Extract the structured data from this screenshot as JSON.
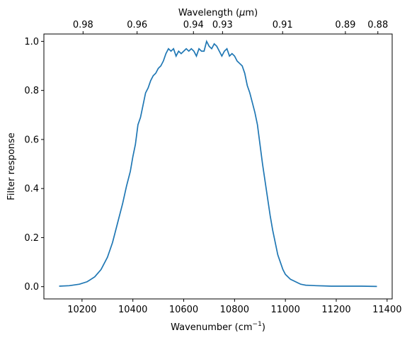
{
  "chart_data": {
    "type": "line",
    "xlabel": "Wavenumber (cm",
    "xlabel_sup": "−1",
    "xlabel_close": ")",
    "ylabel": "Filter response",
    "top_xlabel_prefix": "Wavelength (",
    "top_xlabel_mu": "μ",
    "top_xlabel_suffix": "m)",
    "xlim": [
      10050,
      11420
    ],
    "ylim": [
      -0.05,
      1.03
    ],
    "x_ticks": [
      {
        "value": 10200,
        "label": "10200"
      },
      {
        "value": 10400,
        "label": "10400"
      },
      {
        "value": 10600,
        "label": "10600"
      },
      {
        "value": 10800,
        "label": "10800"
      },
      {
        "value": 11000,
        "label": "11000"
      },
      {
        "value": 11200,
        "label": "11200"
      },
      {
        "value": 11400,
        "label": "11400"
      }
    ],
    "y_ticks": [
      {
        "value": 0.0,
        "label": "0.0"
      },
      {
        "value": 0.2,
        "label": "0.2"
      },
      {
        "value": 0.4,
        "label": "0.4"
      },
      {
        "value": 0.6,
        "label": "0.6"
      },
      {
        "value": 0.8,
        "label": "0.8"
      },
      {
        "value": 1.0,
        "label": "1.0"
      }
    ],
    "top_ticks": [
      {
        "wavelength": 0.98,
        "label": "0.98"
      },
      {
        "wavelength": 0.96,
        "label": "0.96"
      },
      {
        "wavelength": 0.94,
        "label": "0.94"
      },
      {
        "wavelength": 0.93,
        "label": "0.93"
      },
      {
        "wavelength": 0.91,
        "label": "0.91"
      },
      {
        "wavelength": 0.89,
        "label": "0.89"
      },
      {
        "wavelength": 0.88,
        "label": "0.88"
      }
    ],
    "series": [
      {
        "color": "#1f77b4",
        "x": [
          10110,
          10150,
          10190,
          10220,
          10250,
          10275,
          10300,
          10320,
          10340,
          10360,
          10375,
          10390,
          10400,
          10410,
          10420,
          10430,
          10440,
          10450,
          10460,
          10470,
          10480,
          10490,
          10500,
          10510,
          10520,
          10530,
          10540,
          10550,
          10560,
          10570,
          10580,
          10590,
          10600,
          10610,
          10620,
          10630,
          10640,
          10650,
          10660,
          10670,
          10680,
          10690,
          10700,
          10710,
          10720,
          10730,
          10740,
          10750,
          10760,
          10770,
          10780,
          10790,
          10800,
          10810,
          10820,
          10830,
          10840,
          10850,
          10860,
          10870,
          10880,
          10890,
          10900,
          10910,
          10920,
          10930,
          10940,
          10950,
          10960,
          10970,
          10980,
          10990,
          11000,
          11010,
          11020,
          11030,
          11040,
          11050,
          11060,
          11070,
          11080,
          11100,
          11120,
          11150,
          11180,
          11220,
          11260,
          11300,
          11360
        ],
        "y": [
          0.002,
          0.004,
          0.01,
          0.02,
          0.04,
          0.07,
          0.12,
          0.18,
          0.26,
          0.34,
          0.41,
          0.47,
          0.53,
          0.58,
          0.66,
          0.69,
          0.74,
          0.79,
          0.81,
          0.84,
          0.86,
          0.87,
          0.89,
          0.9,
          0.92,
          0.95,
          0.97,
          0.96,
          0.97,
          0.94,
          0.96,
          0.95,
          0.96,
          0.97,
          0.96,
          0.97,
          0.96,
          0.94,
          0.97,
          0.96,
          0.96,
          1.0,
          0.98,
          0.97,
          0.99,
          0.98,
          0.96,
          0.94,
          0.96,
          0.97,
          0.94,
          0.95,
          0.94,
          0.92,
          0.91,
          0.9,
          0.87,
          0.82,
          0.79,
          0.75,
          0.71,
          0.66,
          0.58,
          0.5,
          0.43,
          0.36,
          0.29,
          0.23,
          0.18,
          0.13,
          0.1,
          0.07,
          0.05,
          0.04,
          0.03,
          0.025,
          0.02,
          0.015,
          0.01,
          0.008,
          0.006,
          0.005,
          0.004,
          0.003,
          0.002,
          0.002,
          0.002,
          0.002,
          0.001
        ]
      }
    ]
  }
}
